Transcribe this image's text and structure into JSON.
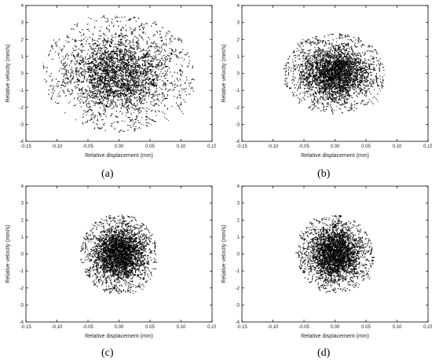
{
  "figure": {
    "captions": [
      "(a)",
      "(b)",
      "(c)",
      "(d)"
    ]
  },
  "chart_data": [
    {
      "type": "scatter",
      "panel": "(a)",
      "xlabel": "Relative displacement (mm)",
      "ylabel": "Relative velocity (mm/s)",
      "xlim": [
        -0.15,
        0.15
      ],
      "ylim": [
        -4,
        4
      ],
      "x_ticks": [
        "-0.15",
        "-0.10",
        "-0.05",
        "0.00",
        "0.05",
        "0.10",
        "0.15"
      ],
      "y_ticks": [
        "-4",
        "-3",
        "-2",
        "-1",
        "0",
        "1",
        "2",
        "3",
        "4"
      ],
      "cloud": {
        "center": [
          0.0,
          0.0
        ],
        "x_extent": [
          -0.12,
          0.12
        ],
        "y_extent": [
          -3.5,
          3.3
        ]
      },
      "color": "#000000"
    },
    {
      "type": "scatter",
      "panel": "(b)",
      "xlabel": "Relative displacement (mm)",
      "ylabel": "Relative velocity (mm/s)",
      "xlim": [
        -0.15,
        0.15
      ],
      "ylim": [
        -4,
        4
      ],
      "x_ticks": [
        "-0.15",
        "-0.10",
        "-0.05",
        "0.00",
        "0.05",
        "0.10",
        "0.15"
      ],
      "y_ticks": [
        "-4",
        "-3",
        "-2",
        "-1",
        "0",
        "1",
        "2",
        "3",
        "4"
      ],
      "cloud": {
        "center": [
          0.0,
          0.0
        ],
        "x_extent": [
          -0.08,
          0.08
        ],
        "y_extent": [
          -2.3,
          2.3
        ]
      },
      "color": "#000000"
    },
    {
      "type": "scatter",
      "panel": "(c)",
      "xlabel": "Relative displacement (mm)",
      "ylabel": "Relative velocity (mm/s)",
      "xlim": [
        -0.15,
        0.15
      ],
      "ylim": [
        -4,
        4
      ],
      "x_ticks": [
        "-0.15",
        "-0.10",
        "-0.05",
        "0.00",
        "0.05",
        "0.10",
        "0.15"
      ],
      "y_ticks": [
        "-4",
        "-3",
        "-2",
        "-1",
        "0",
        "1",
        "2",
        "3",
        "4"
      ],
      "cloud": {
        "center": [
          0.0,
          0.0
        ],
        "x_extent": [
          -0.06,
          0.06
        ],
        "y_extent": [
          -2.6,
          2.0
        ]
      },
      "color": "#000000"
    },
    {
      "type": "scatter",
      "panel": "(d)",
      "xlabel": "Relative displacement (mm)",
      "ylabel": "Relative velocity (mm/s)",
      "xlim": [
        -0.15,
        0.15
      ],
      "ylim": [
        -4,
        4
      ],
      "x_ticks": [
        "-0.15",
        "-0.10",
        "-0.05",
        "0.00",
        "0.05",
        "0.10",
        "0.15"
      ],
      "y_ticks": [
        "-4",
        "-3",
        "-2",
        "-1",
        "0",
        "1",
        "2",
        "3",
        "4"
      ],
      "cloud": {
        "center": [
          0.0,
          0.0
        ],
        "x_extent": [
          -0.06,
          0.06
        ],
        "y_extent": [
          -2.4,
          2.1
        ]
      },
      "color": "#000000"
    }
  ]
}
